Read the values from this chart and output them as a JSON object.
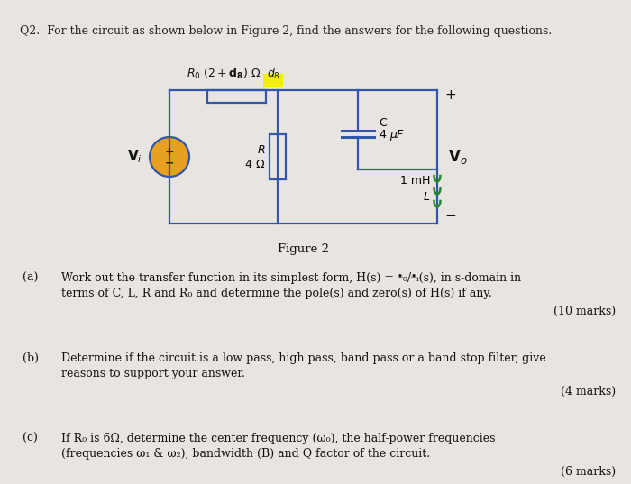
{
  "background_color": "#e8e5e0",
  "title_text": "Q2.  For the circuit as shown below in Figure 2, find the answers for the following questions.",
  "R0_label": "R₀ (2 + d₈) Ω",
  "figure_caption": "Figure 2",
  "circuit_color": "#3355aa",
  "inductor_color": "#228B22",
  "source_fill": "#e8a020",
  "line_width": 1.6,
  "parts": [
    {
      "label": "(a)",
      "line1": "Work out the transfer function in its simplest form, H(s) = ᵜ₀/ᵜᵢ(s), in s-domain in",
      "line2": "terms of C, L, R and R₀ and determine the pole(s) and zero(s) of H(s) if any.",
      "marks": "(10 marks)"
    },
    {
      "label": "(b)",
      "line1": "Determine if the circuit is a low pass, high pass, band pass or a band stop filter, give",
      "line2": "reasons to support your answer.",
      "marks": "(4 marks)"
    },
    {
      "label": "(c)",
      "line1": "If R₀ is 6Ω, determine the center frequency (ω₀), the half-power frequencies",
      "line2": "(frequencies ω₁ & ω₂), bandwidth (B) and Q factor of the circuit.",
      "marks": "(6 marks)"
    }
  ]
}
